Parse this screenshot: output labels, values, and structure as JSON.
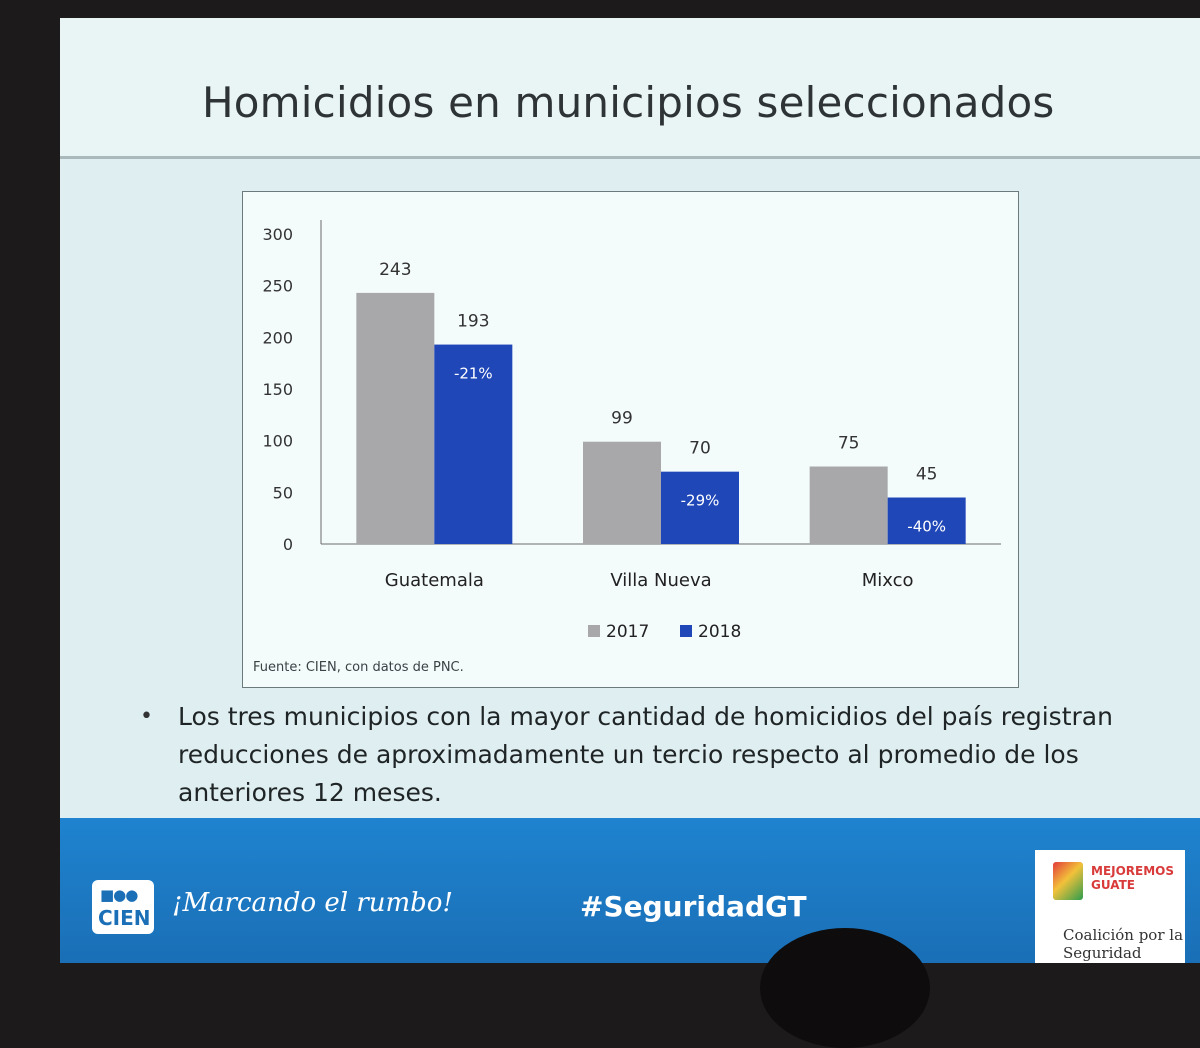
{
  "title": "Homicidios en municipios seleccionados",
  "chart_data": {
    "type": "bar",
    "categories": [
      "Guatemala",
      "Villa Nueva",
      "Mixco"
    ],
    "series": [
      {
        "name": "2017",
        "values": [
          243,
          99,
          75
        ],
        "color": "#a8a8aa"
      },
      {
        "name": "2018",
        "values": [
          193,
          70,
          45
        ],
        "color": "#1f47b8"
      }
    ],
    "change_labels": [
      "-21%",
      "-29%",
      "-40%"
    ],
    "ylim": [
      0,
      300
    ],
    "yticks": [
      "0",
      "50",
      "100",
      "150",
      "200",
      "250",
      "300"
    ],
    "legend_position": "bottom",
    "grid": false,
    "source": "Fuente: CIEN, con datos de PNC."
  },
  "bullet": "Los tres municipios con la mayor cantidad de homicidios del país registran reducciones de aproximadamente un tercio respecto al promedio de los anteriores 12 meses.",
  "footer": {
    "logo_text": "CIEN",
    "tagline": "¡Marcando el rumbo!",
    "hashtag": "#SeguridadGT",
    "partner_brand": "MEJOREMOS GUATE",
    "partner_name": "Coalición por la Seguridad"
  }
}
